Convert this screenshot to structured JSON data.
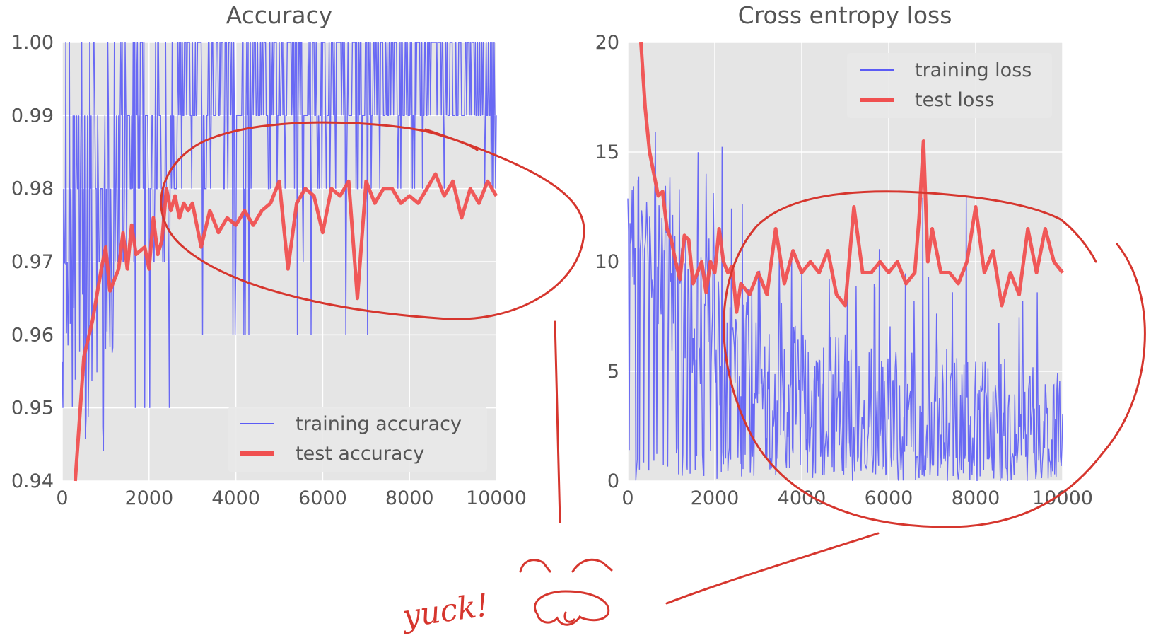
{
  "colors": {
    "plot_bg": "#e5e5e5",
    "grid": "#ffffff",
    "training": "#5b5bf5",
    "test": "#f05050",
    "annotation": "#d6362e",
    "text": "#555555"
  },
  "annotation": {
    "text": "yuck!"
  },
  "chart_data": [
    {
      "type": "line",
      "title": "Accuracy",
      "xlabel": "",
      "ylabel": "",
      "xlim": [
        0,
        10000
      ],
      "ylim": [
        0.94,
        1.0
      ],
      "grid": true,
      "legend_placement": "lower-right",
      "x_ticks": [
        "0",
        "2000",
        "4000",
        "6000",
        "8000",
        "10000"
      ],
      "y_ticks": [
        "0.94",
        "0.95",
        "0.96",
        "0.97",
        "0.98",
        "0.99",
        "1.00"
      ],
      "series": [
        {
          "name": "training accuracy",
          "style": "thin-noisy",
          "color": "#5b5bf5"
        },
        {
          "name": "test accuracy",
          "color": "#f05050",
          "x": [
            300,
            500,
            700,
            900,
            1000,
            1100,
            1300,
            1400,
            1500,
            1600,
            1700,
            1900,
            2000,
            2100,
            2200,
            2300,
            2400,
            2500,
            2600,
            2700,
            2800,
            2900,
            3000,
            3200,
            3400,
            3600,
            3800,
            4000,
            4200,
            4400,
            4600,
            4800,
            5000,
            5200,
            5400,
            5600,
            5800,
            6000,
            6200,
            6400,
            6600,
            6800,
            7000,
            7200,
            7400,
            7600,
            7800,
            8000,
            8200,
            8400,
            8600,
            8800,
            9000,
            9200,
            9400,
            9600,
            9800,
            10000
          ],
          "values": [
            0.94,
            0.957,
            0.962,
            0.969,
            0.972,
            0.966,
            0.969,
            0.974,
            0.969,
            0.975,
            0.971,
            0.972,
            0.969,
            0.976,
            0.971,
            0.973,
            0.98,
            0.977,
            0.979,
            0.976,
            0.978,
            0.977,
            0.978,
            0.972,
            0.977,
            0.974,
            0.976,
            0.975,
            0.977,
            0.975,
            0.977,
            0.978,
            0.981,
            0.969,
            0.978,
            0.98,
            0.979,
            0.974,
            0.98,
            0.979,
            0.981,
            0.965,
            0.981,
            0.978,
            0.98,
            0.98,
            0.978,
            0.979,
            0.978,
            0.98,
            0.982,
            0.979,
            0.981,
            0.976,
            0.98,
            0.978,
            0.981,
            0.979
          ]
        }
      ]
    },
    {
      "type": "line",
      "title": "Cross entropy loss",
      "xlabel": "",
      "ylabel": "",
      "xlim": [
        0,
        10000
      ],
      "ylim": [
        0,
        20
      ],
      "grid": true,
      "legend_placement": "top-right",
      "x_ticks": [
        "0",
        "2000",
        "4000",
        "6000",
        "8000",
        "10000"
      ],
      "y_ticks": [
        "0",
        "5",
        "10",
        "15",
        "20"
      ],
      "series": [
        {
          "name": "training loss",
          "style": "thin-noisy",
          "color": "#5b5bf5"
        },
        {
          "name": "test loss",
          "color": "#f05050",
          "x": [
            300,
            400,
            500,
            600,
            700,
            800,
            900,
            1000,
            1100,
            1200,
            1300,
            1400,
            1500,
            1600,
            1700,
            1800,
            1900,
            2000,
            2100,
            2200,
            2300,
            2400,
            2500,
            2600,
            2800,
            3000,
            3200,
            3400,
            3600,
            3800,
            4000,
            4200,
            4400,
            4600,
            4800,
            5000,
            5200,
            5400,
            5600,
            5800,
            6000,
            6200,
            6400,
            6600,
            6700,
            6800,
            6900,
            7000,
            7200,
            7400,
            7600,
            7800,
            8000,
            8200,
            8400,
            8600,
            8800,
            9000,
            9200,
            9400,
            9600,
            9800,
            10000
          ],
          "values": [
            20.0,
            17.0,
            15.0,
            14.0,
            13.0,
            13.2,
            11.5,
            11.0,
            10.0,
            9.2,
            11.2,
            11.0,
            9.0,
            9.5,
            10.0,
            8.6,
            10.0,
            9.5,
            11.5,
            10.0,
            9.5,
            9.8,
            7.7,
            9.0,
            8.5,
            9.5,
            8.5,
            11.5,
            9.0,
            10.5,
            9.5,
            10.0,
            9.5,
            10.5,
            8.5,
            8.0,
            12.5,
            9.5,
            9.5,
            10.0,
            9.5,
            10.0,
            9.0,
            9.5,
            12.0,
            15.5,
            10.0,
            11.5,
            9.5,
            9.5,
            9.0,
            10.0,
            12.5,
            9.5,
            10.5,
            8.0,
            9.5,
            8.5,
            11.5,
            9.5,
            11.5,
            10.0,
            9.5
          ]
        }
      ]
    }
  ]
}
